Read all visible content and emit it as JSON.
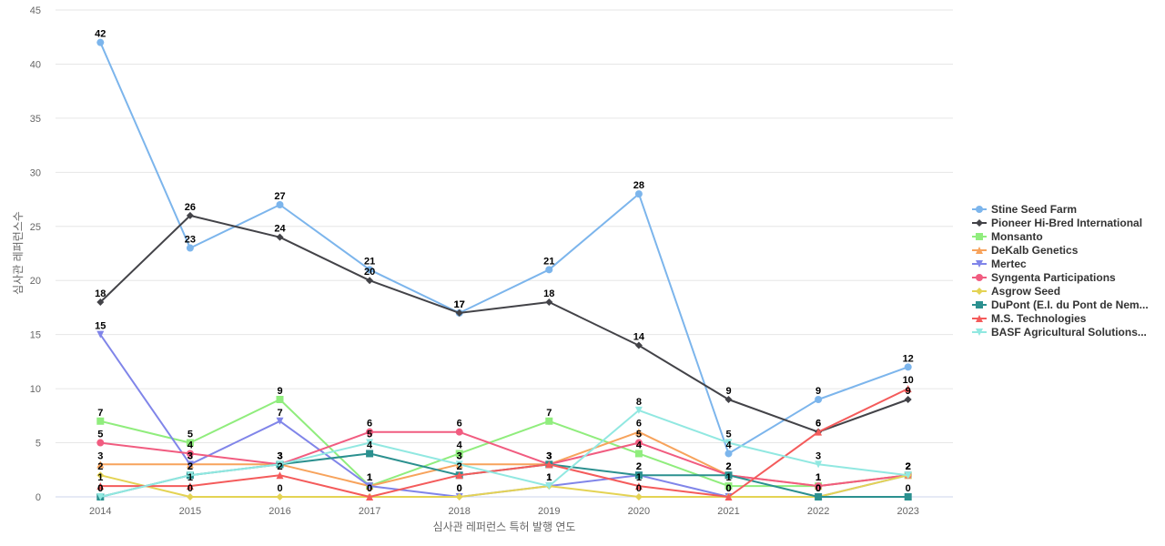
{
  "chart_data": {
    "type": "line",
    "title": "",
    "xlabel": "심사관 레퍼런스 특허 발행 연도",
    "ylabel": "심사관 레퍼런스수",
    "ylim": [
      0,
      45
    ],
    "yticks": [
      0,
      5,
      10,
      15,
      20,
      25,
      30,
      35,
      40,
      45
    ],
    "grid": true,
    "legend_position": "right",
    "x": [
      "2014",
      "2015",
      "2016",
      "2017",
      "2018",
      "2019",
      "2020",
      "2021",
      "2022",
      "2023"
    ],
    "series": [
      {
        "name": "Stine Seed Farm",
        "color": "#7cb5ec",
        "marker": "circle",
        "values": [
          42,
          23,
          27,
          21,
          17,
          21,
          28,
          4,
          9,
          12
        ]
      },
      {
        "name": "Pioneer Hi-Bred International",
        "color": "#434348",
        "marker": "diamond",
        "values": [
          18,
          26,
          24,
          20,
          17,
          18,
          14,
          9,
          6,
          9
        ]
      },
      {
        "name": "Monsanto",
        "color": "#90ed7d",
        "marker": "square",
        "values": [
          7,
          5,
          9,
          1,
          4,
          7,
          4,
          1,
          1,
          2
        ]
      },
      {
        "name": "DeKalb Genetics",
        "color": "#f7a35c",
        "marker": "triangle",
        "values": [
          3,
          3,
          3,
          1,
          3,
          3,
          6,
          2,
          1,
          2
        ]
      },
      {
        "name": "Mertec",
        "color": "#8085e9",
        "marker": "triangle-down",
        "values": [
          15,
          3,
          7,
          1,
          0,
          1,
          2,
          0,
          0,
          2
        ]
      },
      {
        "name": "Syngenta Participations",
        "color": "#f15c80",
        "marker": "circle",
        "values": [
          5,
          4,
          3,
          6,
          6,
          3,
          5,
          2,
          1,
          2
        ]
      },
      {
        "name": "Asgrow Seed",
        "color": "#e4d354",
        "marker": "diamond",
        "values": [
          2,
          0,
          0,
          0,
          0,
          1,
          0,
          0,
          0,
          2
        ]
      },
      {
        "name": "DuPont (E.I. du Pont de Nem...",
        "color": "#2b908f",
        "marker": "square",
        "values": [
          0,
          2,
          3,
          4,
          2,
          3,
          2,
          2,
          0,
          0
        ]
      },
      {
        "name": "M.S. Technologies",
        "color": "#f45b5b",
        "marker": "triangle",
        "values": [
          1,
          1,
          2,
          0,
          2,
          3,
          1,
          0,
          6,
          10
        ]
      },
      {
        "name": "BASF Agricultural Solutions...",
        "color": "#91e8e1",
        "marker": "triangle-down",
        "values": [
          0,
          2,
          3,
          5,
          3,
          1,
          8,
          5,
          3,
          2
        ]
      }
    ]
  }
}
